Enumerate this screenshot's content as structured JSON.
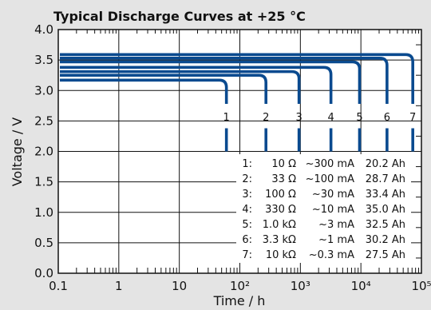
{
  "chart_data": {
    "type": "line",
    "title": "Typical Discharge Curves at +25 °C",
    "xlabel": "Time / h",
    "ylabel": "Voltage / V",
    "x_scale": "log",
    "xlim": [
      0.1,
      100000
    ],
    "ylim": [
      0.0,
      4.0
    ],
    "x_ticks": [
      "0.1",
      "1",
      "10",
      "10²",
      "10³",
      "10⁴",
      "10⁵"
    ],
    "y_ticks": [
      "0.0",
      "0.5",
      "1.0",
      "1.5",
      "2.0",
      "2.5",
      "3.0",
      "3.5",
      "4.0"
    ],
    "grid": true,
    "line_color": "#0a4a8f",
    "series": [
      {
        "name": "1",
        "plateau_v": 3.17,
        "end_h": 60
      },
      {
        "name": "2",
        "plateau_v": 3.25,
        "end_h": 270
      },
      {
        "name": "3",
        "plateau_v": 3.31,
        "end_h": 950
      },
      {
        "name": "4",
        "plateau_v": 3.38,
        "end_h": 3200
      },
      {
        "name": "5",
        "plateau_v": 3.47,
        "end_h": 9500
      },
      {
        "name": "6",
        "plateau_v": 3.53,
        "end_h": 27000
      },
      {
        "name": "7",
        "plateau_v": 3.59,
        "end_h": 72000
      }
    ],
    "legend": [
      {
        "id": "1:",
        "resistance": "10 Ω",
        "current": "~300 mA",
        "capacity": "20.2 Ah"
      },
      {
        "id": "2:",
        "resistance": "33 Ω",
        "current": "~100 mA",
        "capacity": "28.7 Ah"
      },
      {
        "id": "3:",
        "resistance": "100 Ω",
        "current": "~30 mA",
        "capacity": "33.4 Ah"
      },
      {
        "id": "4:",
        "resistance": "330 Ω",
        "current": "~10 mA",
        "capacity": "35.0 Ah"
      },
      {
        "id": "5:",
        "resistance": "1.0 kΩ",
        "current": "~3 mA",
        "capacity": "32.5 Ah"
      },
      {
        "id": "6:",
        "resistance": "3.3 kΩ",
        "current": "~1 mA",
        "capacity": "30.2 Ah"
      },
      {
        "id": "7:",
        "resistance": "10 kΩ",
        "current": "~0.3 mA",
        "capacity": "27.5 Ah"
      }
    ]
  }
}
